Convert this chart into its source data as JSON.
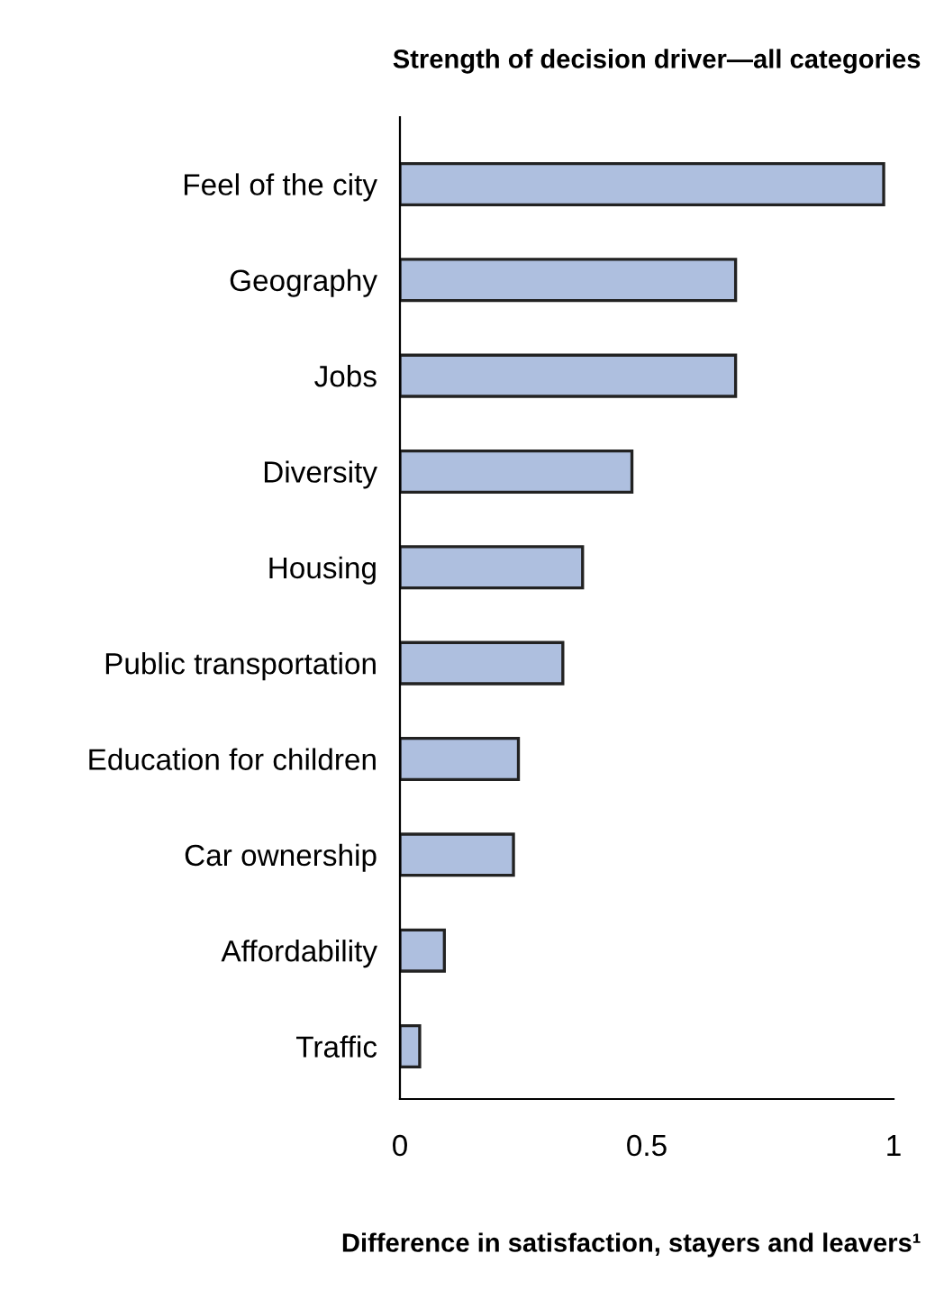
{
  "chart_data": {
    "type": "bar",
    "orientation": "horizontal",
    "title": "Strength of decision driver—all categories",
    "xlabel": "Difference in satisfaction, stayers and leavers¹",
    "categories": [
      "Feel of the city",
      "Geography",
      "Jobs",
      "Diversity",
      "Housing",
      "Public transportation",
      "Education for children",
      "Car ownership",
      "Affordability",
      "Traffic"
    ],
    "values": [
      0.98,
      0.68,
      0.68,
      0.47,
      0.37,
      0.33,
      0.24,
      0.23,
      0.09,
      0.04
    ],
    "color": "#aebfdf",
    "xlim": [
      0,
      1
    ],
    "xticks": [
      0,
      0.5,
      1
    ],
    "grid": false,
    "legend": false
  }
}
